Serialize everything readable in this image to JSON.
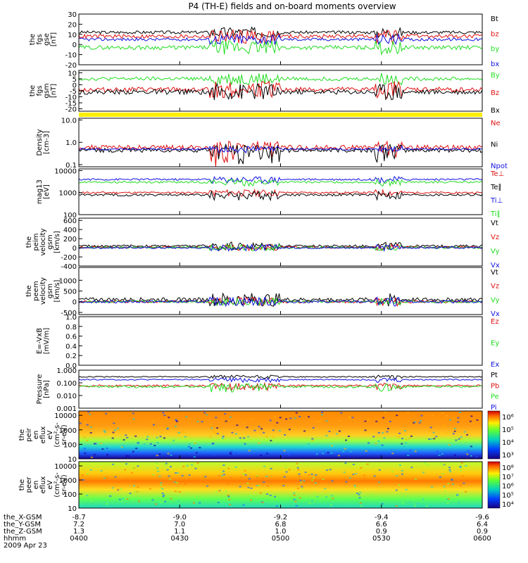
{
  "title": "P4 (TH-E) fields and on-board moments overview",
  "colors": {
    "black": "#000000",
    "red": "#e01010",
    "green": "#22dd22",
    "blue": "#1010e0",
    "yellow": "#ffee00"
  },
  "chart_data": {
    "type": "line",
    "x_ticks": [
      "0400",
      "0430",
      "0500",
      "0530",
      "0600"
    ],
    "panels": [
      {
        "id": "fgs-gse",
        "ylabel": [
          "the",
          "fgs",
          "gse",
          "[nT]"
        ],
        "scale": "linear",
        "ylim": [
          -20,
          30
        ],
        "ticks": [
          {
            "v": 30,
            "l": "30"
          },
          {
            "v": 20,
            "l": "20"
          },
          {
            "v": 10,
            "l": "10"
          },
          {
            "v": 0,
            "l": "0"
          },
          {
            "v": -10,
            "l": "-10"
          },
          {
            "v": -20,
            "l": "-20"
          }
        ],
        "series": [
          {
            "name": "Bt",
            "color": "black",
            "base": 12,
            "amp": 1.5
          },
          {
            "name": "bz",
            "color": "red",
            "base": 8,
            "amp": 2
          },
          {
            "name": "by",
            "color": "green",
            "base": -3,
            "amp": 2
          },
          {
            "name": "bx",
            "color": "blue",
            "base": 5,
            "amp": 1.5
          }
        ]
      },
      {
        "id": "fgs-gsm",
        "ylabel": [
          "the",
          "fgs",
          "gsm",
          "[nT]"
        ],
        "scale": "linear",
        "ylim": [
          -22,
          12
        ],
        "ticks": [
          {
            "v": 10,
            "l": "10"
          },
          {
            "v": 5,
            "l": "5"
          },
          {
            "v": 0,
            "l": "0"
          },
          {
            "v": -5,
            "l": "-5"
          },
          {
            "v": -10,
            "l": "-10"
          },
          {
            "v": -15,
            "l": "-15"
          },
          {
            "v": -20,
            "l": "-20"
          }
        ],
        "series": [
          {
            "name": "By",
            "color": "green",
            "base": 5,
            "amp": 1.5
          },
          {
            "name": "Bz",
            "color": "red",
            "base": -4,
            "amp": 2
          },
          {
            "name": "Bx",
            "color": "black",
            "base": -6,
            "amp": 2
          }
        ]
      },
      {
        "id": "density",
        "ylabel": [
          "Density",
          "[cm-3]"
        ],
        "scale": "log",
        "ylim": [
          0.08,
          12
        ],
        "ticks": [
          {
            "v": 10,
            "l": "10.0"
          },
          {
            "v": 1,
            "l": "1.0"
          },
          {
            "v": 0.1,
            "l": "0.1"
          }
        ],
        "series": [
          {
            "name": "Ne",
            "color": "red",
            "base": 0.6,
            "amp": 0.15
          },
          {
            "name": "Ni",
            "color": "black",
            "base": 0.45,
            "amp": 0.1
          },
          {
            "name": "Npot",
            "color": "blue",
            "base": 0.5,
            "amp": 0.05
          }
        ]
      },
      {
        "id": "temperature",
        "ylabel": [
          "mag13",
          "[eV]"
        ],
        "scale": "log",
        "ylim": [
          100,
          12000
        ],
        "ticks": [
          {
            "v": 10000,
            "l": "10000"
          },
          {
            "v": 1000,
            "l": "1000"
          },
          {
            "v": 100,
            "l": "100"
          }
        ],
        "series": [
          {
            "name": "Te⊥",
            "color": "red",
            "base": 1000,
            "amp": 100
          },
          {
            "name": "Te∥",
            "color": "black",
            "base": 800,
            "amp": 100
          },
          {
            "name": "Ti⊥",
            "color": "blue",
            "base": 4000,
            "amp": 400
          },
          {
            "name": "Ti∥",
            "color": "green",
            "base": 3000,
            "amp": 300
          }
        ]
      },
      {
        "id": "peim-velocity",
        "ylabel": [
          "the",
          "peim",
          "velocity",
          "gsm",
          "[km/s]"
        ],
        "scale": "linear",
        "ylim": [
          -400,
          650
        ],
        "ticks": [
          {
            "v": 600,
            "l": "600"
          },
          {
            "v": 400,
            "l": "400"
          },
          {
            "v": 200,
            "l": "200"
          },
          {
            "v": 0,
            "l": "0"
          },
          {
            "v": -200,
            "l": "-200"
          },
          {
            "v": -400,
            "l": "-400"
          }
        ],
        "series": [
          {
            "name": "Vt",
            "color": "black",
            "base": 40,
            "amp": 25
          },
          {
            "name": "Vz",
            "color": "red",
            "base": 10,
            "amp": 20
          },
          {
            "name": "Vy",
            "color": "green",
            "base": 5,
            "amp": 20
          },
          {
            "name": "Vx",
            "color": "blue",
            "base": 0,
            "amp": 20
          }
        ]
      },
      {
        "id": "peem-velocity",
        "ylabel": [
          "the",
          "peem",
          "velocity",
          "gsm",
          "[km/s]"
        ],
        "scale": "linear",
        "ylim": [
          -600,
          1600
        ],
        "ticks": [
          {
            "v": 1000,
            "l": "1000"
          },
          {
            "v": 500,
            "l": "500"
          },
          {
            "v": 0,
            "l": "0"
          },
          {
            "v": -500,
            "l": "-500"
          }
        ],
        "series": [
          {
            "name": "Vt",
            "color": "black",
            "base": 100,
            "amp": 90
          },
          {
            "name": "Vz",
            "color": "red",
            "base": 0,
            "amp": 60
          },
          {
            "name": "Vy",
            "color": "green",
            "base": 0,
            "amp": 50
          },
          {
            "name": "Vx",
            "color": "blue",
            "base": 0,
            "amp": 60
          }
        ]
      },
      {
        "id": "efield",
        "ylabel": [
          "E=-VxB",
          "[mV/m]"
        ],
        "scale": "linear",
        "ylim": [
          0,
          1
        ],
        "ticks": [
          {
            "v": 1,
            "l": "1.0"
          },
          {
            "v": 0.8,
            "l": "0.8"
          },
          {
            "v": 0.6,
            "l": "0.6"
          },
          {
            "v": 0.4,
            "l": "0.4"
          },
          {
            "v": 0.2,
            "l": "0.2"
          },
          {
            "v": 0,
            "l": "0.0"
          }
        ],
        "series": [
          {
            "name": "Ez",
            "color": "red"
          },
          {
            "name": "Ey",
            "color": "green"
          },
          {
            "name": "Ex",
            "color": "blue"
          }
        ]
      },
      {
        "id": "pressure",
        "ylabel": [
          "Pressure",
          "[nPa]"
        ],
        "scale": "log",
        "ylim": [
          0.001,
          1
        ],
        "ticks": [
          {
            "v": 1,
            "l": "1.000"
          },
          {
            "v": 0.1,
            "l": "0.100"
          },
          {
            "v": 0.01,
            "l": "0.010"
          },
          {
            "v": 0.001,
            "l": "0.001"
          }
        ],
        "series": [
          {
            "name": "Pt",
            "color": "black",
            "base": 0.3,
            "amp": 0.03
          },
          {
            "name": "Pb",
            "color": "red",
            "base": 0.06,
            "amp": 0.01
          },
          {
            "name": "Pe",
            "color": "green",
            "base": 0.05,
            "amp": 0.01
          },
          {
            "name": "Pi",
            "color": "blue",
            "base": 0.18,
            "amp": 0.02
          }
        ]
      },
      {
        "id": "peir-eflux",
        "type": "heatmap",
        "ylabel": [
          "the",
          "peir",
          "en",
          "eflux",
          "eV",
          "(cm²-s-",
          "sr-eV)"
        ],
        "scale": "log",
        "ylim": [
          10,
          20000
        ],
        "ticks": [
          {
            "v": 10000,
            "l": "10000"
          },
          {
            "v": 1000,
            "l": "1000"
          },
          {
            "v": 100,
            "l": "100"
          },
          {
            "v": 10,
            "l": "10"
          }
        ],
        "colorbar": [
          {
            "v": "10⁶"
          },
          {
            "v": "10⁵"
          },
          {
            "v": "10⁴"
          },
          {
            "v": "10³"
          }
        ]
      },
      {
        "id": "peer-eflux",
        "type": "heatmap",
        "ylabel": [
          "the",
          "peer",
          "en",
          "eflux",
          "eV",
          "(cm²-s-",
          "sr-eV)"
        ],
        "scale": "log",
        "ylim": [
          10,
          20000
        ],
        "ticks": [
          {
            "v": 10000,
            "l": "10000"
          },
          {
            "v": 1000,
            "l": "1000"
          },
          {
            "v": 100,
            "l": "100"
          },
          {
            "v": 10,
            "l": "10"
          }
        ],
        "colorbar": [
          {
            "v": "10⁸"
          },
          {
            "v": "10⁷"
          },
          {
            "v": "10⁶"
          },
          {
            "v": "10⁵"
          },
          {
            "v": "10⁴"
          }
        ]
      }
    ],
    "footer": {
      "labels": [
        "the_X-GSM",
        "the_Y-GSM",
        "the_Z-GSM",
        "hhmm",
        "2009 Apr 23"
      ],
      "rows": [
        [
          "-8.7",
          "-9.0",
          "-9.2",
          "-9.4",
          "-9.6"
        ],
        [
          "7.2",
          "7.0",
          "6.8",
          "6.6",
          "6.4"
        ],
        [
          "1.3",
          "1.1",
          "1.0",
          "0.9",
          "0.9"
        ],
        [
          "0400",
          "0430",
          "0500",
          "0530",
          "0600"
        ]
      ]
    }
  }
}
